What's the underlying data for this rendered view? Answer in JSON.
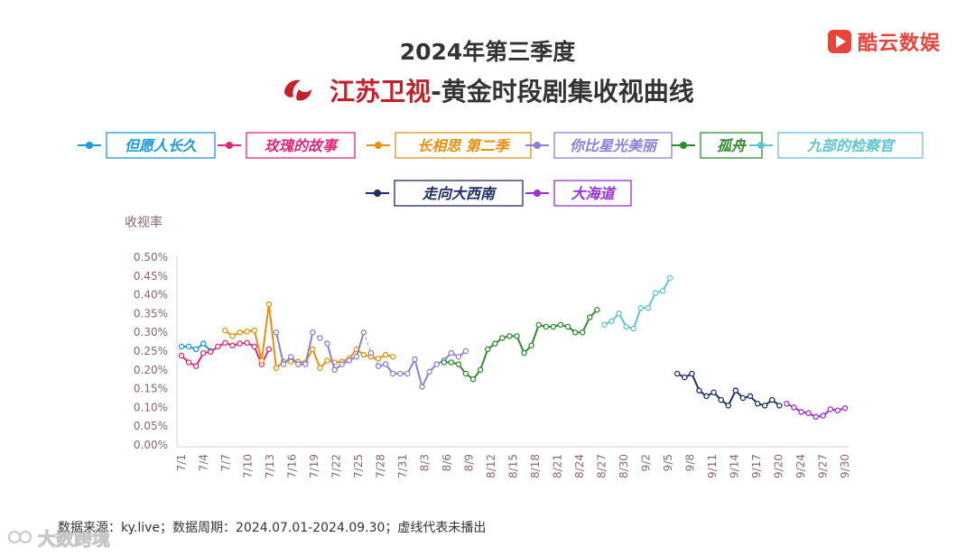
{
  "title": {
    "line1": "2024年第三季度",
    "channel": "江苏卫视",
    "suffix": "-黄金时段剧集收视曲线"
  },
  "brand": {
    "name": "酷云数娱",
    "color": "#e8443a",
    "icon": "play-logo-icon"
  },
  "channel_logo": {
    "icon": "jiangsu-tv-logo-icon",
    "color": "#c4202c"
  },
  "footnote": "数据来源：ky.live；数据周期：2024.07.01-2024.09.30；虚线代表未播出",
  "watermark": {
    "text": "大数跨境",
    "icon": "watermark-logo-icon"
  },
  "chart_data": {
    "type": "line",
    "title": "2024年第三季度 江苏卫视-黄金时段剧集收视曲线",
    "ylabel": "收视率",
    "xlabel": "",
    "ylim": [
      0,
      0.5
    ],
    "y_ticks": [
      "0.00%",
      "0.05%",
      "0.10%",
      "0.15%",
      "0.20%",
      "0.25%",
      "0.30%",
      "0.35%",
      "0.40%",
      "0.45%",
      "0.50%"
    ],
    "x_ticks": [
      "7/1",
      "7/4",
      "7/7",
      "7/10",
      "7/13",
      "7/16",
      "7/19",
      "7/22",
      "7/25",
      "7/28",
      "7/31",
      "8/3",
      "8/6",
      "8/9",
      "8/12",
      "8/15",
      "8/18",
      "8/21",
      "8/24",
      "8/27",
      "8/30",
      "9/2",
      "9/5",
      "9/8",
      "9/11",
      "9/14",
      "9/17",
      "9/20",
      "9/24",
      "9/27",
      "9/30"
    ],
    "x_range": [
      "2024-07-01",
      "2024-09-30"
    ],
    "grid": false,
    "legend_position": "top",
    "note": "虚线代表未播出",
    "series": [
      {
        "name": "但愿人长久",
        "color": "#1a9ad8",
        "points": [
          [
            "2024-07-01",
            0.262
          ],
          [
            "2024-07-02",
            0.262
          ],
          [
            "2024-07-03",
            0.255
          ],
          [
            "2024-07-04",
            0.27
          ],
          [
            "2024-07-05",
            0.25
          ]
        ]
      },
      {
        "name": "玫瑰的故事",
        "color": "#e0277a",
        "points": [
          [
            "2024-07-01",
            0.238
          ],
          [
            "2024-07-02",
            0.22
          ],
          [
            "2024-07-03",
            0.21
          ],
          [
            "2024-07-04",
            0.245
          ],
          [
            "2024-07-05",
            0.248
          ],
          [
            "2024-07-06",
            0.262
          ],
          [
            "2024-07-07",
            0.272
          ],
          [
            "2024-07-08",
            0.265
          ],
          [
            "2024-07-09",
            0.27
          ],
          [
            "2024-07-10",
            0.272
          ],
          [
            "2024-07-11",
            0.262
          ],
          [
            "2024-07-12",
            0.215
          ],
          [
            "2024-07-13",
            0.255
          ]
        ]
      },
      {
        "name": "长相思 第二季",
        "color": "#e8900e",
        "points": [
          [
            "2024-07-07",
            0.305
          ],
          [
            "2024-07-08",
            0.29
          ],
          [
            "2024-07-09",
            0.3
          ],
          [
            "2024-07-10",
            0.302
          ],
          [
            "2024-07-11",
            0.305
          ],
          [
            "2024-07-12",
            0.225
          ],
          [
            "2024-07-13",
            0.375
          ],
          [
            "2024-07-14",
            0.205
          ],
          [
            "2024-07-15",
            0.222
          ],
          [
            "2024-07-16",
            0.222
          ],
          [
            "2024-07-17",
            0.222
          ],
          [
            "2024-07-18",
            0.22
          ],
          [
            "2024-07-19",
            0.255
          ],
          [
            "2024-07-20",
            0.205
          ],
          [
            "2024-07-21",
            0.225
          ],
          [
            "2024-07-22",
            0.22
          ],
          [
            "2024-07-23",
            0.222
          ],
          [
            "2024-07-24",
            0.23
          ],
          [
            "2024-07-25",
            0.255
          ],
          [
            "2024-07-26",
            0.24
          ],
          [
            "2024-07-27",
            0.235
          ],
          [
            "2024-07-28",
            0.23
          ],
          [
            "2024-07-29",
            0.24
          ],
          [
            "2024-07-30",
            0.235
          ]
        ],
        "dashed_segments": []
      },
      {
        "name": "你比星光美丽",
        "color": "#8a7fd8",
        "points": [
          [
            "2024-07-14",
            0.3
          ],
          [
            "2024-07-15",
            0.215
          ],
          [
            "2024-07-16",
            0.235
          ],
          [
            "2024-07-17",
            0.215
          ],
          [
            "2024-07-18",
            0.215
          ],
          [
            "2024-07-19",
            0.3
          ],
          [
            "2024-07-20",
            0.285
          ],
          [
            "2024-07-21",
            0.27
          ],
          [
            "2024-07-22",
            0.2
          ],
          [
            "2024-07-23",
            0.215
          ],
          [
            "2024-07-24",
            0.225
          ],
          [
            "2024-07-25",
            0.235
          ],
          [
            "2024-07-26",
            0.3
          ],
          [
            "2024-07-27",
            0.245
          ],
          [
            "2024-07-28",
            0.21
          ],
          [
            "2024-07-29",
            0.215
          ],
          [
            "2024-07-30",
            0.19
          ],
          [
            "2024-07-31",
            0.19
          ],
          [
            "2024-08-01",
            0.19
          ],
          [
            "2024-08-02",
            0.228
          ],
          [
            "2024-08-03",
            0.155
          ],
          [
            "2024-08-04",
            0.195
          ],
          [
            "2024-08-05",
            0.215
          ],
          [
            "2024-08-06",
            0.225
          ],
          [
            "2024-08-07",
            0.245
          ],
          [
            "2024-08-08",
            0.235
          ],
          [
            "2024-08-09",
            0.25
          ]
        ],
        "dashed_segments": [
          [
            "2024-07-19",
            "2024-07-20"
          ],
          [
            "2024-07-20",
            "2024-07-21"
          ],
          [
            "2024-07-26",
            "2024-07-27"
          ],
          [
            "2024-07-27",
            "2024-07-28"
          ]
        ]
      },
      {
        "name": "孤舟",
        "color": "#2e8b2e",
        "points": [
          [
            "2024-08-06",
            0.22
          ],
          [
            "2024-08-07",
            0.22
          ],
          [
            "2024-08-08",
            0.215
          ],
          [
            "2024-08-09",
            0.19
          ],
          [
            "2024-08-10",
            0.175
          ],
          [
            "2024-08-11",
            0.2
          ],
          [
            "2024-08-12",
            0.255
          ],
          [
            "2024-08-13",
            0.27
          ],
          [
            "2024-08-14",
            0.285
          ],
          [
            "2024-08-15",
            0.29
          ],
          [
            "2024-08-16",
            0.29
          ],
          [
            "2024-08-17",
            0.245
          ],
          [
            "2024-08-18",
            0.265
          ],
          [
            "2024-08-19",
            0.32
          ],
          [
            "2024-08-20",
            0.315
          ],
          [
            "2024-08-21",
            0.315
          ],
          [
            "2024-08-22",
            0.32
          ],
          [
            "2024-08-23",
            0.315
          ],
          [
            "2024-08-24",
            0.3
          ],
          [
            "2024-08-25",
            0.3
          ],
          [
            "2024-08-26",
            0.34
          ],
          [
            "2024-08-27",
            0.36
          ]
        ]
      },
      {
        "name": "九部的检察官",
        "color": "#5ec4d4",
        "points": [
          [
            "2024-08-28",
            0.32
          ],
          [
            "2024-08-29",
            0.33
          ],
          [
            "2024-08-30",
            0.35
          ],
          [
            "2024-08-31",
            0.315
          ],
          [
            "2024-09-01",
            0.31
          ],
          [
            "2024-09-02",
            0.365
          ],
          [
            "2024-09-03",
            0.365
          ],
          [
            "2024-09-04",
            0.405
          ],
          [
            "2024-09-05",
            0.41
          ],
          [
            "2024-09-06",
            0.445
          ]
        ]
      },
      {
        "name": "走向大西南",
        "color": "#1f2d66",
        "points": [
          [
            "2024-09-07",
            0.19
          ],
          [
            "2024-09-08",
            0.18
          ],
          [
            "2024-09-09",
            0.19
          ],
          [
            "2024-09-10",
            0.145
          ],
          [
            "2024-09-11",
            0.13
          ],
          [
            "2024-09-12",
            0.14
          ],
          [
            "2024-09-13",
            0.12
          ],
          [
            "2024-09-14",
            0.105
          ],
          [
            "2024-09-15",
            0.145
          ],
          [
            "2024-09-16",
            0.125
          ],
          [
            "2024-09-17",
            0.13
          ],
          [
            "2024-09-18",
            0.11
          ],
          [
            "2024-09-19",
            0.105
          ],
          [
            "2024-09-20",
            0.12
          ],
          [
            "2024-09-21",
            0.105
          ]
        ]
      },
      {
        "name": "大海道",
        "color": "#9b30d6",
        "points": [
          [
            "2024-09-22",
            0.11
          ],
          [
            "2024-09-23",
            0.1
          ],
          [
            "2024-09-24",
            0.088
          ],
          [
            "2024-09-25",
            0.085
          ],
          [
            "2024-09-26",
            0.075
          ],
          [
            "2024-09-27",
            0.078
          ],
          [
            "2024-09-28",
            0.095
          ],
          [
            "2024-09-29",
            0.092
          ],
          [
            "2024-09-30",
            0.098
          ]
        ]
      }
    ]
  }
}
